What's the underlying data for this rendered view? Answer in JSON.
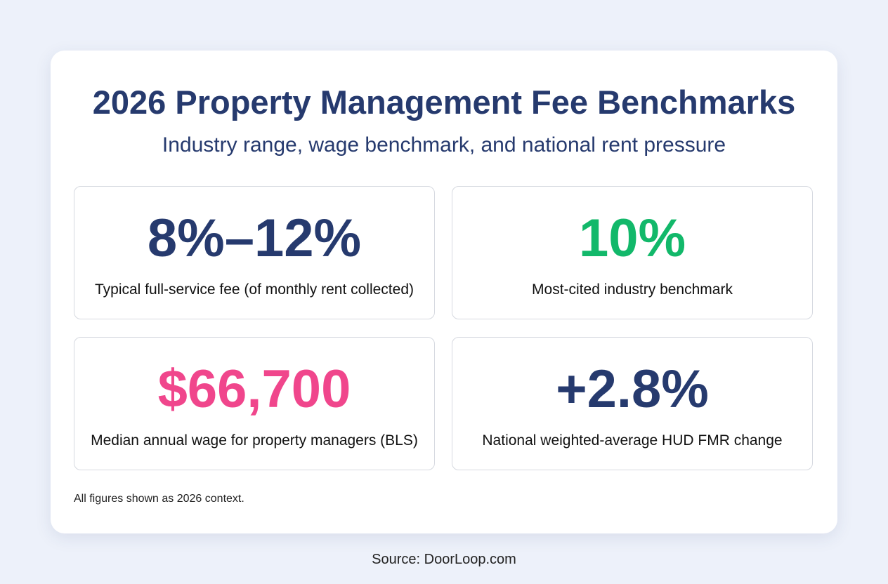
{
  "header": {
    "title": "2026 Property Management Fee Benchmarks",
    "subtitle": "Industry range, wage benchmark, and national rent pressure"
  },
  "cards": [
    {
      "value": "8%–12%",
      "label": "Typical full-service fee (of monthly rent collected)",
      "color": "#263a6e"
    },
    {
      "value": "10%",
      "label": "Most-cited industry benchmark",
      "color": "#12b86a"
    },
    {
      "value": "$66,700",
      "label": "Median annual wage for property managers (BLS)",
      "color": "#f0468c"
    },
    {
      "value": "+2.8%",
      "label": "National weighted-average HUD FMR change",
      "color": "#263a6e"
    }
  ],
  "footnote": "All figures shown as 2026 context.",
  "source": "Source: DoorLoop.com"
}
